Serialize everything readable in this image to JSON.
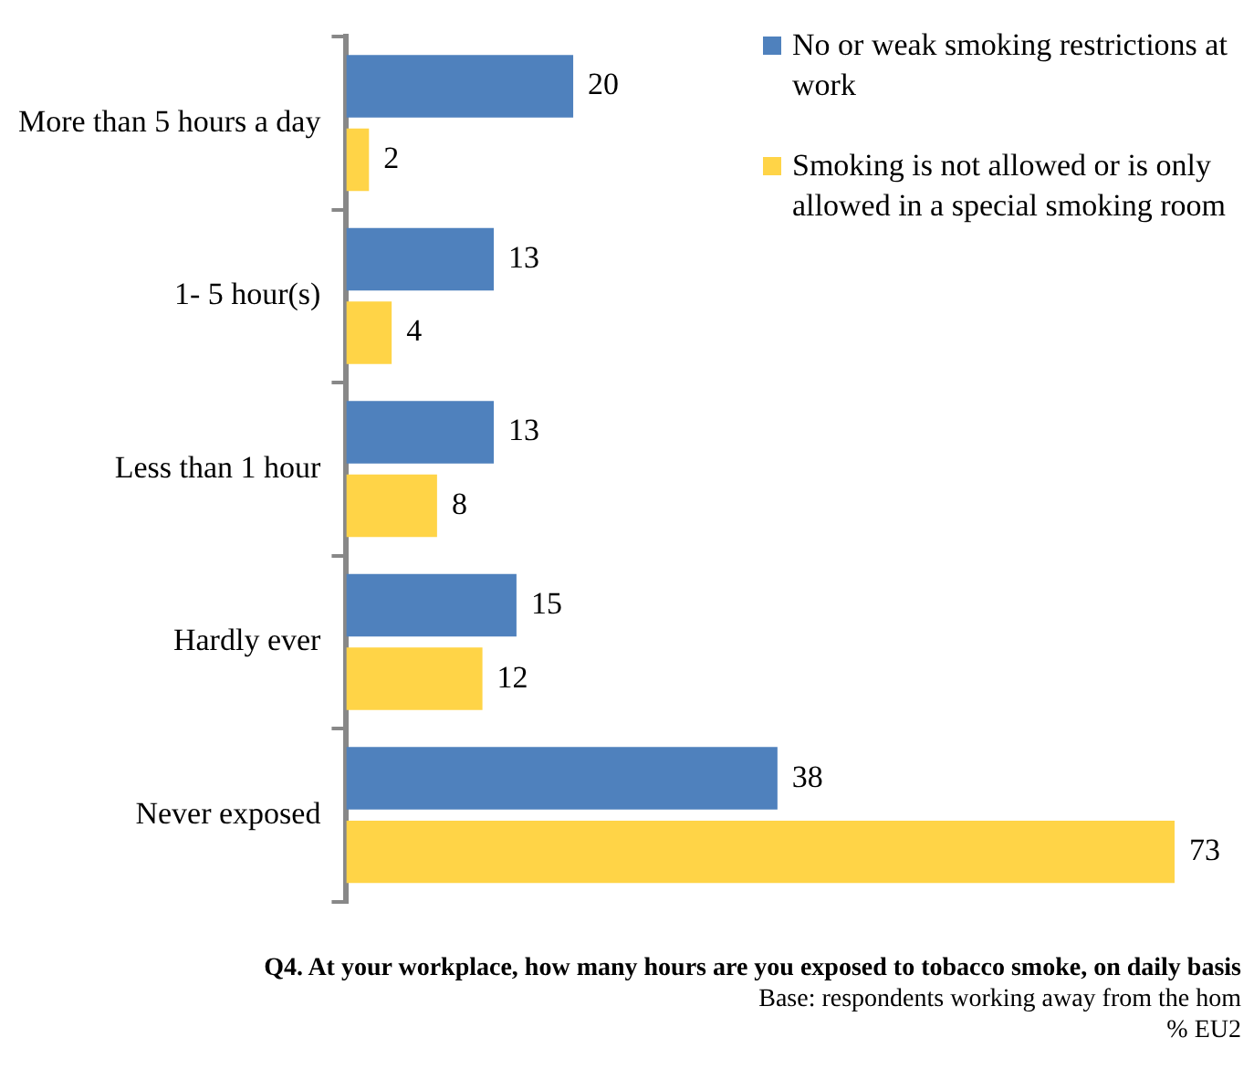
{
  "chart_data": {
    "type": "bar",
    "orientation": "horizontal",
    "categories": [
      "More than 5 hours a day",
      "1- 5 hour(s)",
      "Less than 1 hour",
      "Hardly ever",
      "Never exposed"
    ],
    "series": [
      {
        "name": "No or weak smoking restrictions at work",
        "color": "#4f81bd",
        "values": [
          20,
          13,
          13,
          15,
          38
        ]
      },
      {
        "name": "Smoking is not allowed or is only allowed in a special smoking room",
        "color": "#ffd447",
        "values": [
          2,
          4,
          8,
          12,
          73
        ]
      }
    ],
    "data_labels": true,
    "legend": "top right",
    "annotations": [
      "Q4. At your workplace, how many hours are you exposed to tobacco smoke, on daily basis",
      "Base: respondents working away from the hom",
      "% EU2"
    ]
  }
}
